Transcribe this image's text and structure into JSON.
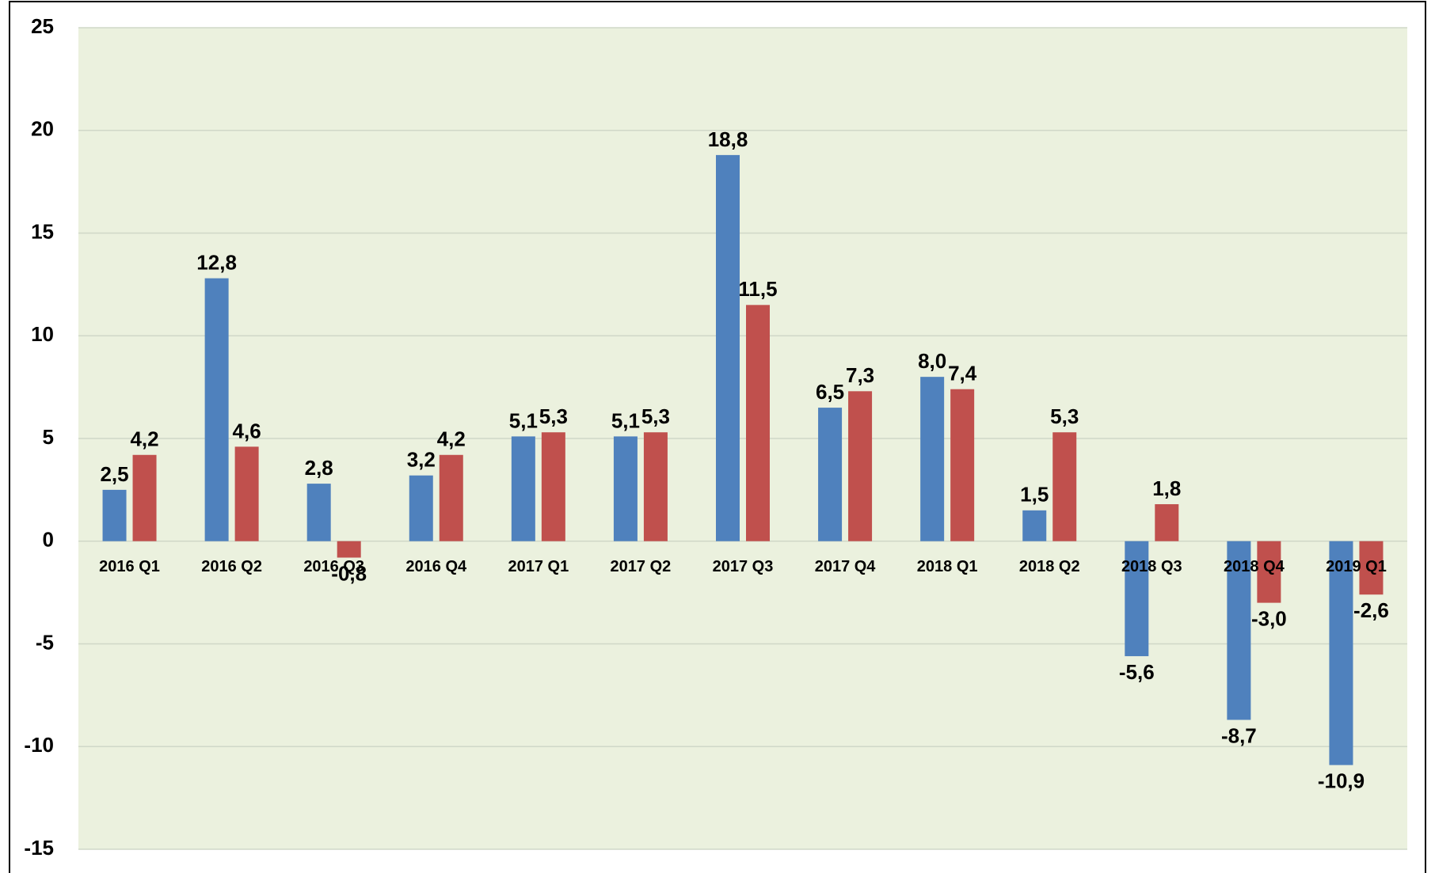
{
  "chart_data": {
    "type": "bar",
    "categories": [
      "2016 Q1",
      "2016 Q2",
      "2016 Q3",
      "2016 Q4",
      "2017 Q1",
      "2017 Q2",
      "2017 Q3",
      "2017 Q4",
      "2018 Q1",
      "2018 Q2",
      "2018 Q3",
      "2018 Q4",
      "2019 Q1"
    ],
    "series": [
      {
        "color": "#4f81bd",
        "values": [
          2.5,
          12.8,
          2.8,
          3.2,
          5.1,
          5.1,
          18.8,
          6.5,
          8.0,
          1.5,
          -5.6,
          -8.7,
          -10.9
        ],
        "value_labels": [
          "2,5",
          "12,8",
          "2,8",
          "3,2",
          "5,1",
          "5,1",
          "18,8",
          "6,5",
          "8,0",
          "1,5",
          "-5,6",
          "-8,7",
          "-10,9"
        ]
      },
      {
        "color": "#c0504d",
        "values": [
          4.2,
          4.6,
          -0.8,
          4.2,
          5.3,
          5.3,
          11.5,
          7.3,
          7.4,
          5.3,
          1.8,
          -3.0,
          -2.6
        ],
        "value_labels": [
          "4,2",
          "4,6",
          "-0,8",
          "4,2",
          "5,3",
          "5,3",
          "11,5",
          "7,3",
          "7,4",
          "5,3",
          "1,8",
          "-3,0",
          "-2,6"
        ]
      }
    ],
    "ylim": [
      -15,
      25
    ],
    "yticks": [
      -15,
      -10,
      -5,
      0,
      5,
      10,
      15,
      20,
      25
    ],
    "grid": true
  }
}
